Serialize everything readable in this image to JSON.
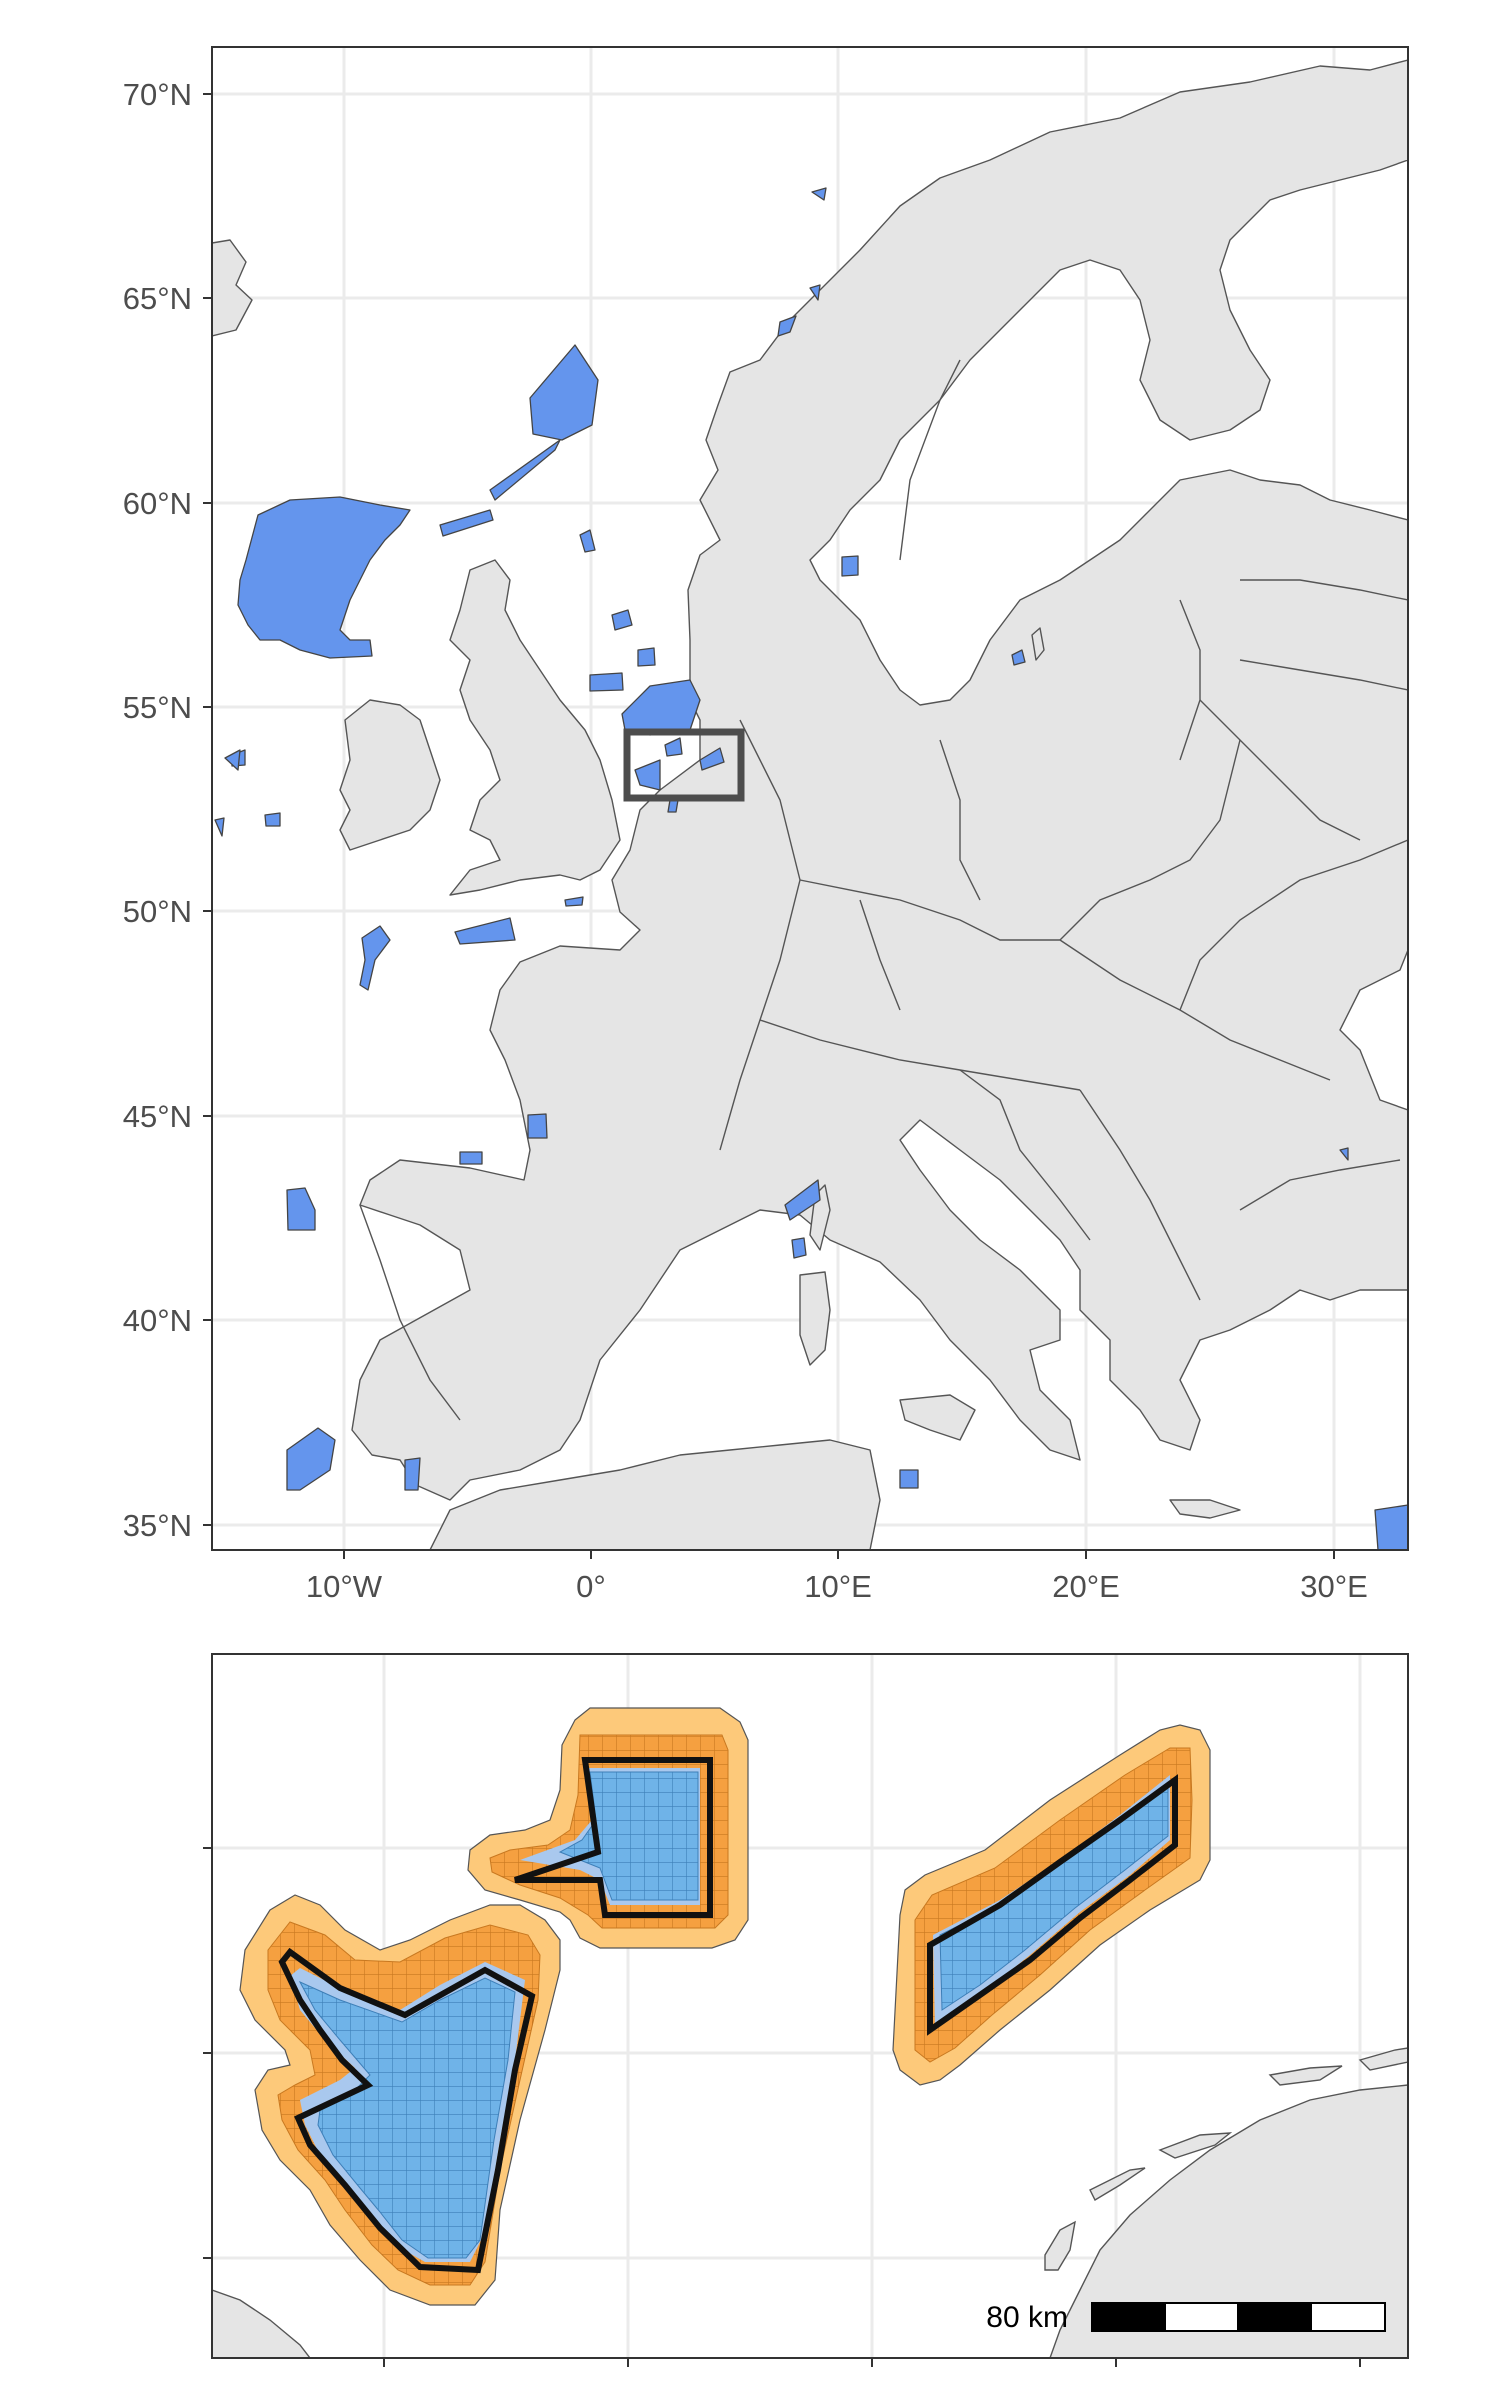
{
  "colors": {
    "land": "#e5e5e5",
    "land_border": "#555555",
    "sea": "#ffffff",
    "protected_area": "#6495ed",
    "grid_cell_inner": "#6fb3e8",
    "grid_cell_buffer": "#f5a040",
    "buffer_fill": "#fdc97a",
    "gridlines": "#ebebeb",
    "frame": "#333333",
    "inset_box": "#4d4d4d"
  },
  "overview_map": {
    "y_axis_labels": [
      "70°N",
      "65°N",
      "60°N",
      "55°N",
      "50°N",
      "45°N",
      "40°N",
      "35°N"
    ],
    "x_axis_labels": [
      "10°W",
      "0°",
      "10°E",
      "20°E",
      "30°E"
    ],
    "inset_box_label": "",
    "icon": "inset-extent-rectangle"
  },
  "detail_map": {
    "scale_bar_label": "80 km",
    "scale_bar_segments": 4,
    "y_tick_count": 3,
    "x_tick_count": 5
  }
}
